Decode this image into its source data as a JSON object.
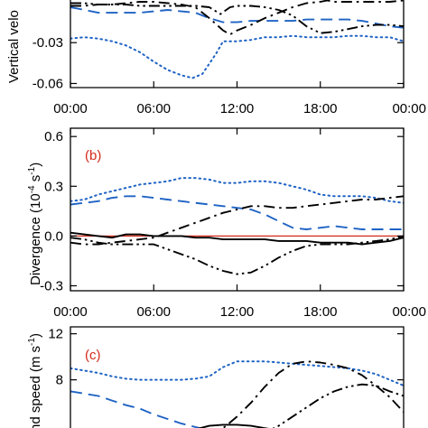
{
  "colors": {
    "blue": "#1f63c4",
    "black": "#000000",
    "red": "#d42a1a"
  },
  "chart_data": [
    {
      "panel": "a",
      "type": "line",
      "ylabel": "Vertical velo",
      "ylim": [
        -0.063,
        0.0
      ],
      "yticks": [
        -0.06,
        -0.03
      ],
      "ytick_labels": [
        "-0.06",
        "-0.03"
      ],
      "xlim": [
        0,
        24
      ],
      "xticks": [
        0,
        6,
        12,
        18,
        24
      ],
      "xtick_labels": [
        "00:00",
        "06:00",
        "12:00",
        "18:00",
        "00:00"
      ],
      "series": [
        {
          "style": "dotted",
          "color": "#1f63c4",
          "x": [
            0,
            1,
            2,
            3,
            4,
            5,
            6,
            7,
            8,
            8.8,
            9.5,
            10.5,
            11,
            12,
            13,
            14,
            15,
            16,
            17,
            18,
            19,
            20,
            21,
            22,
            23,
            24
          ],
          "y": [
            -0.027,
            -0.026,
            -0.027,
            -0.029,
            -0.032,
            -0.037,
            -0.044,
            -0.05,
            -0.054,
            -0.056,
            -0.053,
            -0.038,
            -0.029,
            -0.029,
            -0.028,
            -0.026,
            -0.026,
            -0.025,
            -0.026,
            -0.026,
            -0.026,
            -0.025,
            -0.025,
            -0.026,
            -0.026,
            -0.029
          ]
        },
        {
          "style": "dashed",
          "color": "#1f63c4",
          "x": [
            0,
            1,
            2,
            3,
            4,
            5,
            6,
            7,
            8,
            9,
            10,
            11,
            12,
            13,
            14,
            15,
            16,
            17,
            18,
            19,
            20,
            21,
            22,
            23,
            24
          ],
          "y": [
            -0.004,
            -0.006,
            -0.008,
            -0.008,
            -0.008,
            -0.008,
            -0.007,
            -0.006,
            -0.007,
            -0.008,
            -0.012,
            -0.015,
            -0.015,
            -0.014,
            -0.014,
            -0.014,
            -0.014,
            -0.013,
            -0.013,
            -0.013,
            -0.013,
            -0.014,
            -0.016,
            -0.018,
            -0.019
          ]
        },
        {
          "style": "dash-dot",
          "color": "#000000",
          "x": [
            0,
            1,
            2,
            3,
            4,
            5,
            6,
            7,
            8,
            9,
            10,
            11,
            11.5,
            12,
            13,
            14,
            15,
            16,
            17,
            18,
            18.5,
            19,
            20,
            21,
            22,
            23,
            24
          ],
          "y": [
            -0.003,
            -0.003,
            -0.002,
            -0.002,
            -0.001,
            0.0,
            0.0,
            -0.001,
            -0.002,
            -0.004,
            -0.012,
            -0.021,
            -0.024,
            -0.021,
            -0.017,
            -0.012,
            -0.008,
            -0.004,
            -0.001,
            0.0,
            0.001,
            0.0,
            0.0,
            0.0,
            0.0,
            0.0,
            0.001
          ]
        },
        {
          "style": "dash-dot-dot",
          "color": "#000000",
          "x": [
            0,
            1,
            2,
            3,
            4,
            5,
            6,
            7,
            8,
            9,
            10,
            10.8,
            11.5,
            12,
            13,
            14,
            15,
            16,
            17,
            18,
            19,
            20,
            21,
            22,
            23,
            24
          ],
          "y": [
            -0.001,
            -0.001,
            -0.002,
            -0.002,
            -0.002,
            -0.003,
            -0.003,
            -0.003,
            -0.003,
            -0.003,
            -0.004,
            -0.009,
            -0.004,
            -0.003,
            -0.003,
            -0.004,
            -0.006,
            -0.01,
            -0.018,
            -0.023,
            -0.022,
            -0.02,
            -0.018,
            -0.017,
            -0.017,
            -0.018
          ]
        }
      ]
    },
    {
      "panel": "b",
      "type": "line",
      "label": "(b)",
      "ylabel": "Divergence (10",
      "ylabel_sup": "-4",
      "ylabel_unit": " s",
      "ylabel_unit_sup": "-1",
      "ylabel_end": ")",
      "ylim": [
        -0.33,
        0.65
      ],
      "yticks": [
        -0.3,
        0.0,
        0.3,
        0.6
      ],
      "ytick_labels": [
        "-0.3",
        "0.0",
        "0.3",
        "0.6"
      ],
      "xlim": [
        0,
        24
      ],
      "xticks": [
        0,
        6,
        12,
        18,
        24
      ],
      "xtick_labels": [
        "00:00",
        "06:00",
        "12:00",
        "18:00",
        "00:00"
      ],
      "reference_line": {
        "y": 0.0,
        "color": "#d42a1a"
      },
      "series": [
        {
          "style": "dotted",
          "color": "#1f63c4",
          "x": [
            0,
            1,
            2,
            3,
            4,
            5,
            6,
            7,
            8,
            9,
            10,
            11,
            12,
            13,
            14,
            15,
            16,
            17,
            18,
            19,
            20,
            21,
            22,
            23,
            24
          ],
          "y": [
            0.21,
            0.22,
            0.25,
            0.27,
            0.29,
            0.31,
            0.32,
            0.33,
            0.35,
            0.35,
            0.34,
            0.32,
            0.32,
            0.33,
            0.33,
            0.32,
            0.3,
            0.28,
            0.25,
            0.24,
            0.24,
            0.24,
            0.23,
            0.21,
            0.2
          ]
        },
        {
          "style": "dashed",
          "color": "#1f63c4",
          "x": [
            0,
            1,
            2,
            3,
            4,
            5,
            6,
            7,
            8,
            9,
            10,
            11,
            12,
            13,
            14,
            15,
            16,
            17,
            18,
            19,
            20,
            21,
            22,
            23,
            24
          ],
          "y": [
            0.19,
            0.2,
            0.21,
            0.23,
            0.24,
            0.24,
            0.23,
            0.22,
            0.21,
            0.2,
            0.19,
            0.18,
            0.17,
            0.16,
            0.13,
            0.09,
            0.05,
            0.04,
            0.05,
            0.06,
            0.05,
            0.04,
            0.04,
            0.04,
            0.04
          ]
        },
        {
          "style": "dash-dot",
          "color": "#000000",
          "x": [
            0,
            1,
            2,
            3,
            4,
            5,
            6,
            7,
            8,
            9,
            10,
            11,
            12,
            13,
            14,
            15,
            16,
            17,
            18,
            19,
            20,
            21,
            22,
            23,
            24
          ],
          "y": [
            -0.04,
            -0.05,
            -0.05,
            -0.04,
            -0.03,
            -0.02,
            -0.01,
            0.02,
            0.05,
            0.08,
            0.11,
            0.14,
            0.16,
            0.18,
            0.18,
            0.17,
            0.17,
            0.18,
            0.19,
            0.2,
            0.21,
            0.22,
            0.22,
            0.23,
            0.24
          ]
        },
        {
          "style": "dash-dot-dot",
          "color": "#000000",
          "x": [
            0,
            1,
            2,
            3,
            4,
            5,
            6,
            7,
            8,
            9,
            10,
            11,
            12,
            13,
            14,
            15,
            16,
            17,
            18,
            19,
            20,
            21,
            22,
            23,
            24
          ],
          "y": [
            -0.01,
            -0.02,
            -0.04,
            -0.05,
            -0.05,
            -0.05,
            -0.05,
            -0.08,
            -0.11,
            -0.14,
            -0.18,
            -0.21,
            -0.23,
            -0.22,
            -0.18,
            -0.13,
            -0.09,
            -0.06,
            -0.05,
            -0.05,
            -0.05,
            -0.04,
            -0.03,
            -0.02,
            0.0
          ]
        },
        {
          "style": "solid",
          "color": "#000000",
          "x": [
            0,
            1,
            2,
            3,
            4,
            5,
            6,
            7,
            8,
            9,
            10,
            11,
            12,
            13,
            14,
            15,
            16,
            17,
            18,
            19,
            20,
            21,
            22,
            23,
            24
          ],
          "y": [
            0.02,
            0.01,
            0.0,
            -0.01,
            0.01,
            0.01,
            0.0,
            0.0,
            0.0,
            -0.01,
            -0.01,
            -0.02,
            -0.02,
            -0.02,
            -0.02,
            -0.03,
            -0.03,
            -0.03,
            -0.04,
            -0.04,
            -0.04,
            -0.05,
            -0.04,
            -0.03,
            -0.01
          ]
        }
      ]
    },
    {
      "panel": "c",
      "type": "line",
      "label": "(c)",
      "ylabel": "nd speed (m s",
      "ylabel_sup": "-1",
      "ylabel_end": ")",
      "ylim": [
        3.5,
        12.6
      ],
      "yticks": [
        8,
        12
      ],
      "ytick_labels": [
        "8",
        "12"
      ],
      "xlim": [
        0,
        24
      ],
      "series": [
        {
          "style": "dotted",
          "color": "#1f63c4",
          "x": [
            0,
            1,
            2,
            3,
            4,
            5,
            6,
            7,
            8,
            9,
            10,
            11,
            12,
            13,
            14,
            15,
            16,
            17,
            18,
            19,
            20,
            21,
            22,
            23,
            24
          ],
          "y": [
            9.0,
            8.8,
            8.6,
            8.3,
            8.1,
            8.0,
            8.0,
            8.0,
            8.0,
            8.1,
            8.3,
            9.1,
            9.6,
            9.6,
            9.6,
            9.5,
            9.4,
            9.3,
            9.2,
            9.1,
            9.0,
            8.8,
            8.5,
            8.0,
            7.5
          ]
        },
        {
          "style": "dashed",
          "color": "#1f63c4",
          "x": [
            0,
            1,
            2,
            3,
            4,
            5,
            6,
            7,
            8,
            9,
            10,
            11,
            12
          ],
          "y": [
            7.0,
            6.8,
            6.6,
            6.2,
            5.8,
            5.5,
            5.0,
            4.6,
            4.2,
            3.9,
            3.6,
            3.5,
            3.4
          ]
        },
        {
          "style": "dash-dot",
          "color": "#000000",
          "x": [
            10,
            11,
            12,
            13,
            14,
            15,
            16,
            17,
            18,
            19,
            20,
            21,
            22,
            23,
            24
          ],
          "y": [
            3.4,
            3.8,
            4.8,
            6.0,
            7.4,
            8.6,
            9.4,
            9.6,
            9.5,
            9.3,
            9.0,
            8.4,
            7.5,
            6.5,
            5.2
          ]
        },
        {
          "style": "dash-dot-dot",
          "color": "#000000",
          "x": [
            14,
            15,
            16,
            17,
            18,
            19,
            20,
            21,
            22,
            23,
            24
          ],
          "y": [
            3.4,
            4.0,
            4.8,
            5.6,
            6.4,
            7.0,
            7.4,
            7.6,
            7.5,
            7.0,
            6.6
          ]
        },
        {
          "style": "solid",
          "color": "#000000",
          "x": [
            8,
            9,
            10,
            11,
            12,
            13,
            14,
            15,
            16
          ],
          "y": [
            3.4,
            3.7,
            4.0,
            4.1,
            4.1,
            4.0,
            3.8,
            3.6,
            3.4
          ]
        }
      ]
    }
  ]
}
